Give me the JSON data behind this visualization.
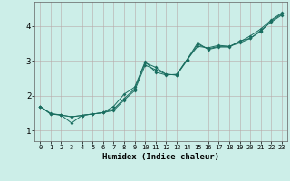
{
  "xlabel": "Humidex (Indice chaleur)",
  "ylabel": "",
  "bg_color": "#cceee8",
  "line_color": "#1a6e60",
  "grid_color": "#b8a8a8",
  "xlim": [
    -0.5,
    23.5
  ],
  "ylim": [
    0.7,
    4.7
  ],
  "xticks": [
    0,
    1,
    2,
    3,
    4,
    5,
    6,
    7,
    8,
    9,
    10,
    11,
    12,
    13,
    14,
    15,
    16,
    17,
    18,
    19,
    20,
    21,
    22,
    23
  ],
  "yticks": [
    1,
    2,
    3,
    4
  ],
  "series": {
    "line1_x": [
      0,
      1,
      2,
      3,
      4,
      5,
      6,
      7,
      8,
      9,
      10,
      11,
      12,
      13,
      14,
      15,
      16,
      17,
      18,
      19,
      20,
      21,
      22,
      23
    ],
    "line1_y": [
      1.7,
      1.48,
      1.45,
      1.22,
      1.44,
      1.48,
      1.52,
      1.62,
      1.92,
      2.2,
      2.95,
      2.82,
      2.62,
      2.6,
      3.05,
      3.52,
      3.33,
      3.4,
      3.4,
      3.58,
      3.65,
      3.88,
      4.12,
      4.32
    ],
    "line2_x": [
      0,
      1,
      2,
      3,
      4,
      5,
      6,
      7,
      8,
      9,
      10,
      11,
      12,
      13,
      14,
      15,
      16,
      17,
      18,
      19,
      20,
      21,
      22,
      23
    ],
    "line2_y": [
      1.7,
      1.5,
      1.45,
      1.4,
      1.44,
      1.48,
      1.52,
      1.7,
      2.05,
      2.25,
      2.98,
      2.68,
      2.6,
      2.62,
      3.05,
      3.42,
      3.38,
      3.45,
      3.42,
      3.55,
      3.72,
      3.92,
      4.18,
      4.38
    ],
    "line3_x": [
      0,
      1,
      2,
      3,
      4,
      5,
      6,
      7,
      8,
      9,
      10,
      11,
      12,
      13,
      14,
      15,
      16,
      17,
      18,
      19,
      20,
      21,
      22,
      23
    ],
    "line3_y": [
      1.7,
      1.48,
      1.45,
      1.4,
      1.44,
      1.48,
      1.52,
      1.58,
      1.88,
      2.15,
      2.88,
      2.75,
      2.62,
      2.6,
      3.02,
      3.48,
      3.35,
      3.42,
      3.42,
      3.52,
      3.65,
      3.85,
      4.15,
      4.35
    ]
  }
}
